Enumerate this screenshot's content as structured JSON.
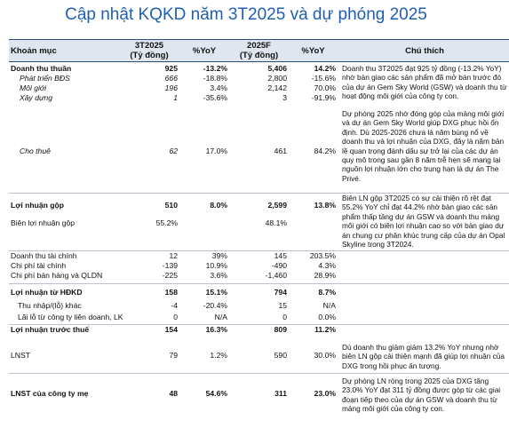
{
  "title": "Cập nhật KQKD năm 3T2025 và dự phóng 2025",
  "headers": {
    "item": "Khoản mục",
    "col_3t2025_line1": "3T2025",
    "col_3t2025_line2": "(Tỷ đồng)",
    "col_yoy1": "%YoY",
    "col_2025f_line1": "2025F",
    "col_2025f_line2": "(Tỷ đồng)",
    "col_yoy2": "%YoY",
    "col_note": "Chú thích"
  },
  "rows": {
    "revenue": {
      "label": "Doanh thu thuần",
      "v1": "925",
      "y1": "-13.2%",
      "v2": "5,406",
      "y2": "14.2%"
    },
    "bds": {
      "label": "Phát triển BĐS",
      "v1": "666",
      "y1": "-18.8%",
      "v2": "2,800",
      "y2": "-15.6%"
    },
    "broker": {
      "label": "Môi giới",
      "v1": "196",
      "y1": "3.4%",
      "v2": "2,142",
      "y2": "70.0%"
    },
    "construction": {
      "label": "Xây dựng",
      "v1": "1",
      "y1": "-35.6%",
      "v2": "3",
      "y2": "-91.9%"
    },
    "rental": {
      "label": "Cho thuê",
      "v1": "62",
      "y1": "17.0%",
      "v2": "461",
      "y2": "84.2%"
    },
    "gross_profit": {
      "label": "Lợi nhuận gộp",
      "v1": "510",
      "y1": "8.0%",
      "v2": "2,599",
      "y2": "13.8%"
    },
    "gross_margin": {
      "label": "Biên lợi nhuận gộp",
      "v1": "55.2%",
      "y1": "",
      "v2": "48.1%",
      "y2": ""
    },
    "fin_income": {
      "label": "Doanh thu tài chính",
      "v1": "12",
      "y1": "39%",
      "v2": "145",
      "y2": "203.5%"
    },
    "fin_expense": {
      "label": "Chi phí tài chính",
      "v1": "-139",
      "y1": "10.9%",
      "v2": "-490",
      "y2": "4.3%"
    },
    "sga": {
      "label": "Chi phí bán hàng và QLDN",
      "v1": "-225",
      "y1": "3.6%",
      "v2": "-1,460",
      "y2": "28.9%"
    },
    "op_profit": {
      "label": "Lợi nhuận từ HĐKD",
      "v1": "158",
      "y1": "15.1%",
      "v2": "794",
      "y2": "8.7%"
    },
    "other": {
      "label": "Thu nhập/(lỗ) khác",
      "v1": "-4",
      "y1": "-20.4%",
      "v2": "15",
      "y2": "N/A"
    },
    "assoc": {
      "label": "Lãi lỗ từ công ty liên doanh, LK",
      "v1": "0",
      "y1": "N/A",
      "v2": "0",
      "y2": "0.0%"
    },
    "pbt": {
      "label": "Lợi nhuận trước thuế",
      "v1": "154",
      "y1": "16.3%",
      "v2": "809",
      "y2": "11.2%"
    },
    "npat": {
      "label": "LNST",
      "v1": "79",
      "y1": "1.2%",
      "v2": "590",
      "y2": "30.0%"
    },
    "npat_parent": {
      "label": "LNST của công ty mẹ",
      "v1": "48",
      "y1": "54.6%",
      "v2": "311",
      "y2": "23.0%"
    }
  },
  "notes": {
    "revenue": "Doanh thu 3T2025 đạt 925 tỷ đồng (-13.2% YoY) nhờ bàn giao các sản phẩm đã mở bán trước đó của dự án Gem Sky World (GSW) và doanh thu từ hoạt động môi giới của công ty con.",
    "forecast": "Dự phóng 2025 nhờ đóng góp của mảng môi giới và dự án Gem Sky World giúp DXG phục hồi ổn định. Dù 2025-2026 chưa là năm bùng nổ về doanh thu và lợi nhuận của DXG, đây là năm bản lề quan trọng đánh dấu sự trở lại của các dự án quy mô trong sau gần 8 năm trễ hẹn sẽ mang lại nguồn lợi nhuận lớn cho trung hạn là dự án The Privé.",
    "gross_profit": "Biên LN gộp 3T2025 có sự cải thiện rõ rệt đạt 55.2% YoY chỉ đạt 44.2% nhờ bàn giao các sản phẩm thấp tầng dự án GSW và doanh thu mảng môi giới có biên lợi nhuận cao so với bàn giao dự án chung cư phân khúc trung cấp của dự án Opal Skyline trong 3T2024.",
    "npat": "Dù doanh thu giảm giảm 13.2% YoY nhưng nhờ biên LN gộp cải thiện mạnh đã giúp lợi nhuận của DXG trong hồi phục ấn tượng.",
    "npat_parent": "Dự phóng LN ròng trong 2025 của DXG tăng 23.0% YoY đạt 311 tỷ đồng được góp từ các giai đoạn tiếp theo của dự án GSW và doanh thu từ mảng môi giới của công ty con."
  }
}
